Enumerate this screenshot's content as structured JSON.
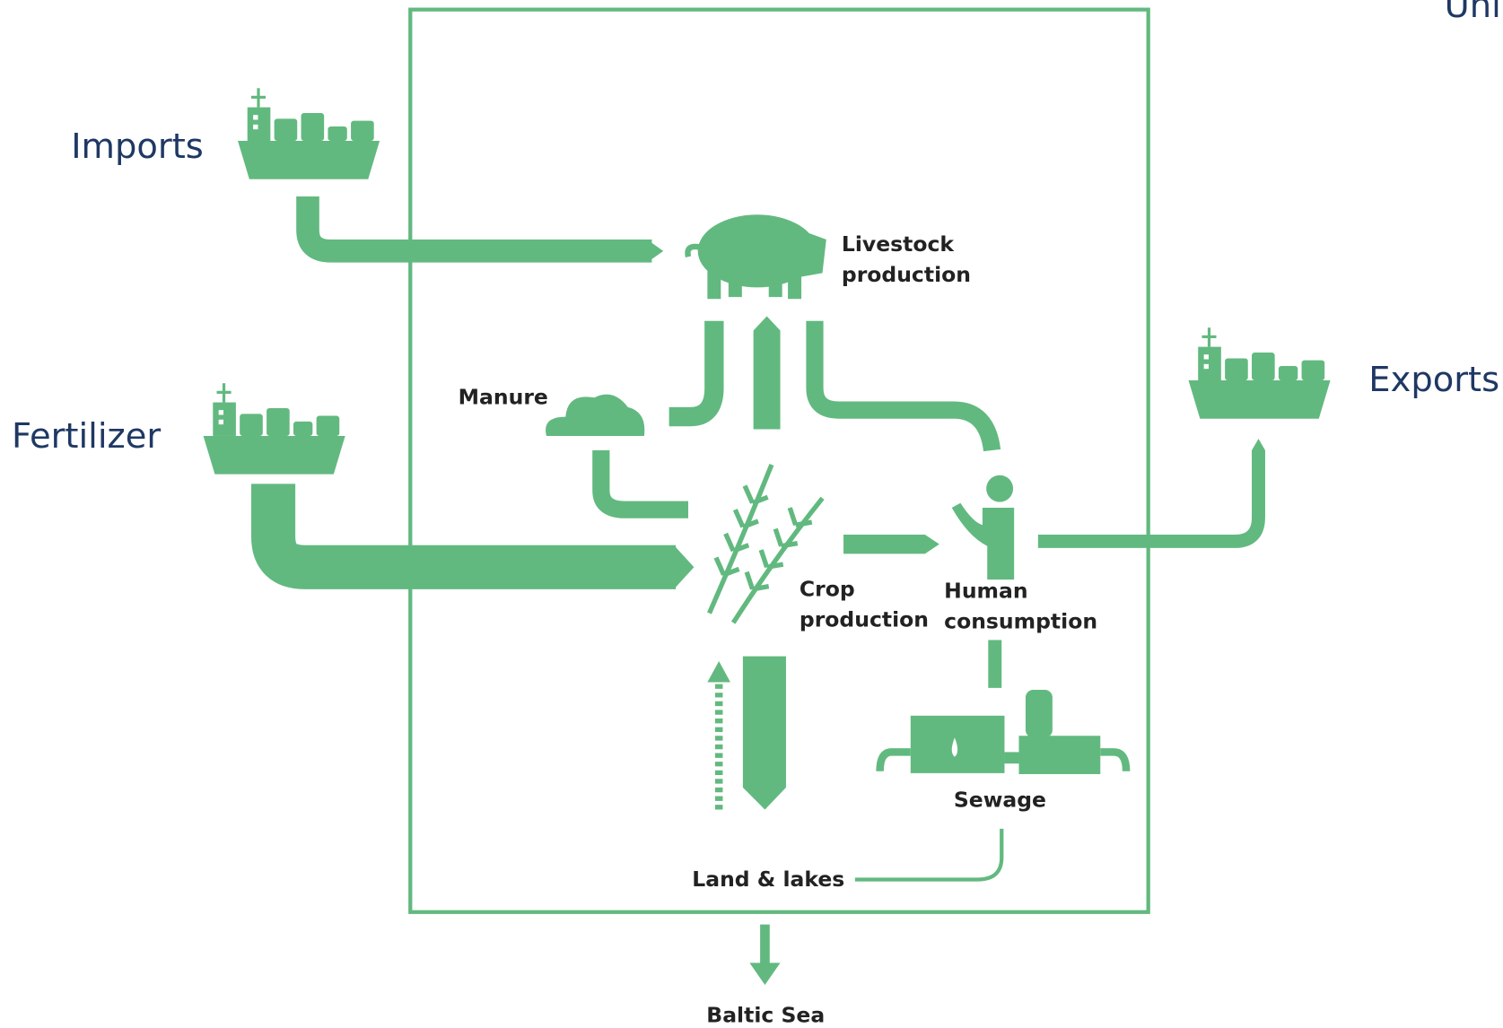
{
  "header": {
    "corner": "Uni"
  },
  "sources": {
    "imports": "Imports",
    "fertilizer": "Fertilizer",
    "exports": "Exports"
  },
  "nodes": {
    "livestock": [
      "Livestock",
      "production"
    ],
    "manure": "Manure",
    "crop": [
      "Crop",
      "production"
    ],
    "human": [
      "Human",
      "consumption"
    ],
    "sewage": "Sewage",
    "land": "Land & lakes",
    "sea": "Baltic Sea"
  }
}
